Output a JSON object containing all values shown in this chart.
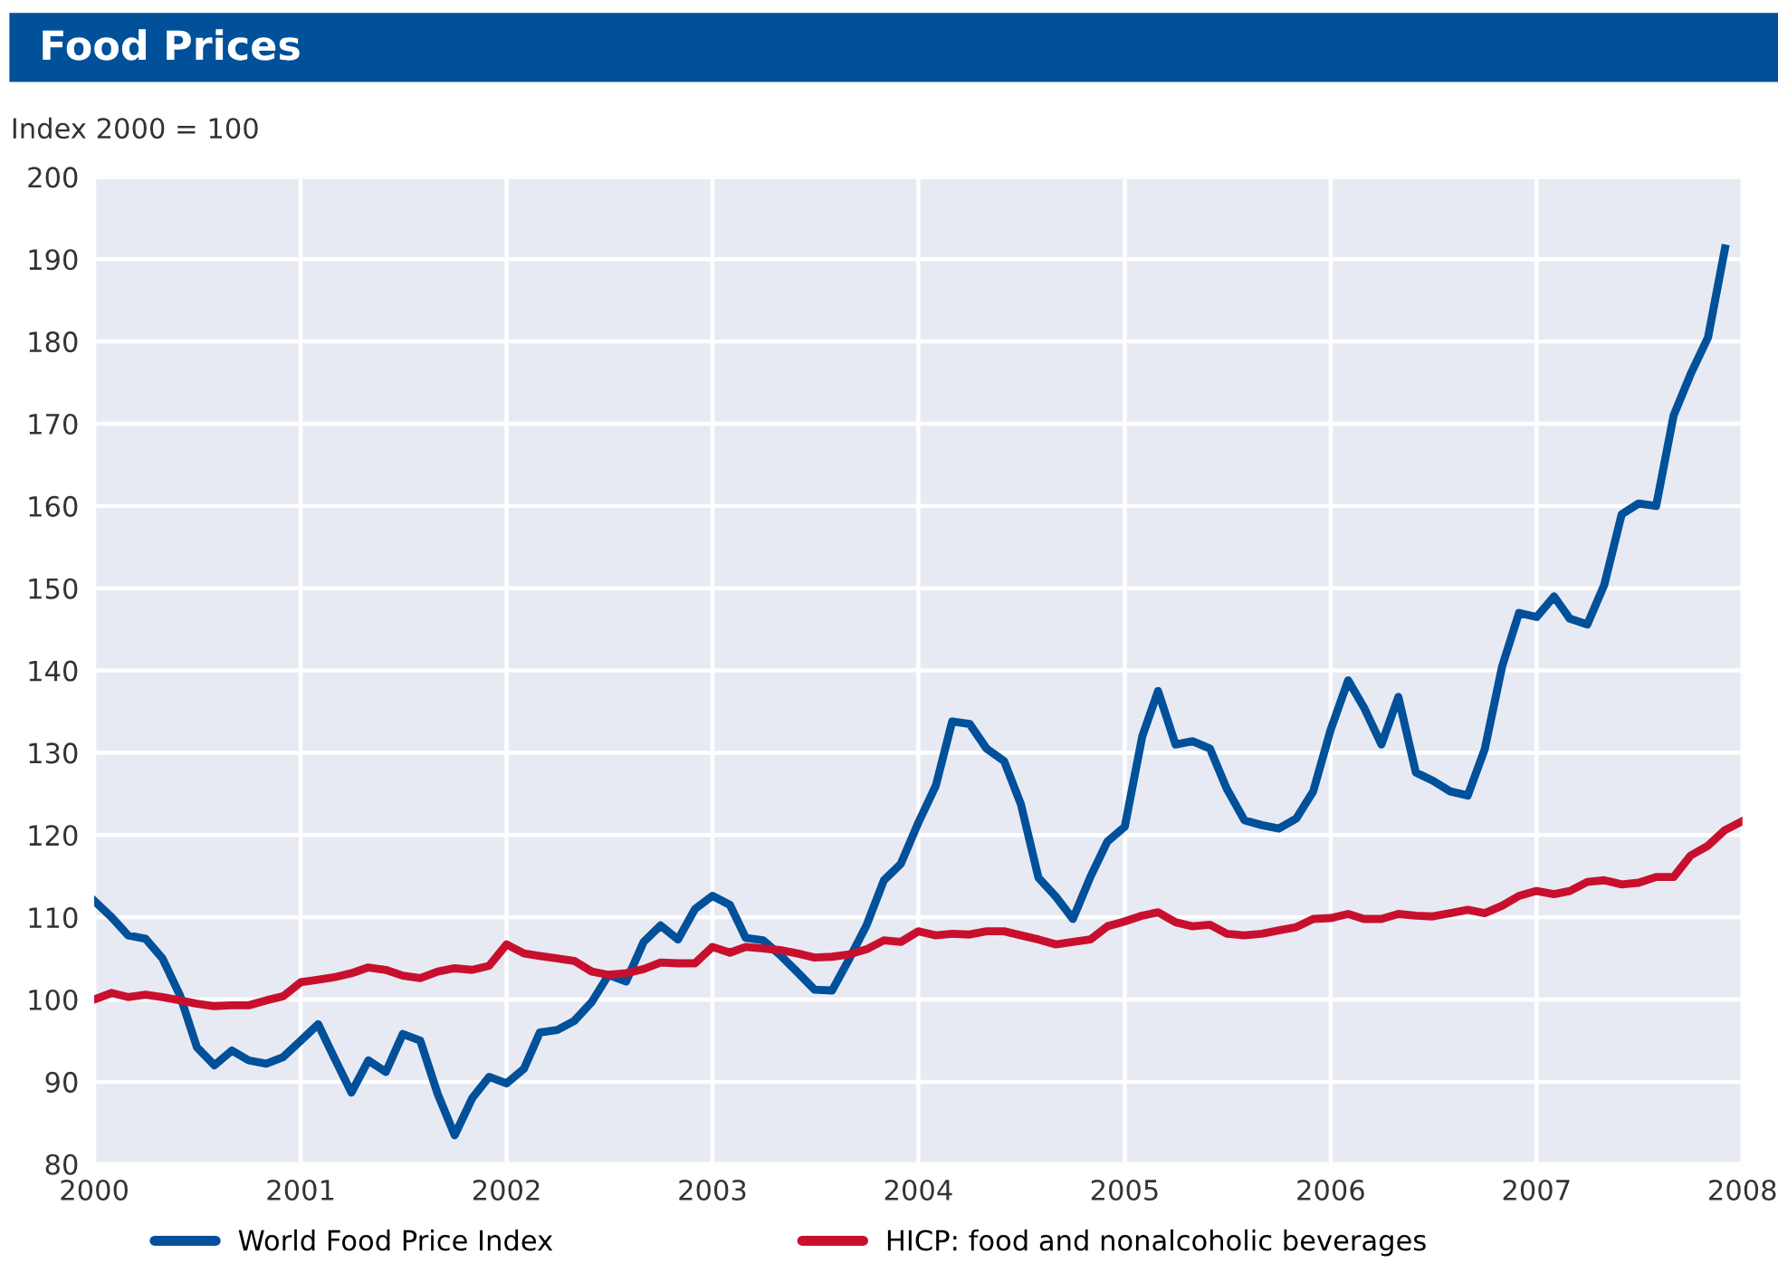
{
  "chart_data": {
    "type": "line",
    "title": "Food Prices",
    "ylabel": "Index 2000 = 100",
    "x": [
      "2000-01",
      "2000-02",
      "2000-03",
      "2000-04",
      "2000-05",
      "2000-06",
      "2000-07",
      "2000-08",
      "2000-09",
      "2000-10",
      "2000-11",
      "2000-12",
      "2001-01",
      "2001-02",
      "2001-03",
      "2001-04",
      "2001-05",
      "2001-06",
      "2001-07",
      "2001-08",
      "2001-09",
      "2001-10",
      "2001-11",
      "2001-12",
      "2002-01",
      "2002-02",
      "2002-03",
      "2002-04",
      "2002-05",
      "2002-06",
      "2002-07",
      "2002-08",
      "2002-09",
      "2002-10",
      "2002-11",
      "2002-12",
      "2003-01",
      "2003-02",
      "2003-03",
      "2003-04",
      "2003-05",
      "2003-06",
      "2003-07",
      "2003-08",
      "2003-09",
      "2003-10",
      "2003-11",
      "2003-12",
      "2004-01",
      "2004-02",
      "2004-03",
      "2004-04",
      "2004-05",
      "2004-06",
      "2004-07",
      "2004-08",
      "2004-09",
      "2004-10",
      "2004-11",
      "2004-12",
      "2005-01",
      "2005-02",
      "2005-03",
      "2005-04",
      "2005-05",
      "2005-06",
      "2005-07",
      "2005-08",
      "2005-09",
      "2005-10",
      "2005-11",
      "2005-12",
      "2006-01",
      "2006-02",
      "2006-03",
      "2006-04",
      "2006-05",
      "2006-06",
      "2006-07",
      "2006-08",
      "2006-09",
      "2006-10",
      "2006-11",
      "2006-12",
      "2007-01",
      "2007-02",
      "2007-03",
      "2007-04",
      "2007-05",
      "2007-06",
      "2007-07",
      "2007-08",
      "2007-09",
      "2007-10",
      "2007-11",
      "2007-12"
    ],
    "series": [
      {
        "name": "World Food Price Index",
        "color": "#00509a",
        "values": [
          112,
          110,
          107.8,
          107.4,
          105,
          100.5,
          94.2,
          92,
          93.8,
          92.6,
          92.2,
          93,
          95,
          97,
          93,
          88.7,
          92.6,
          91.2,
          95.8,
          95,
          88.5,
          83.5,
          88,
          90.6,
          89.8,
          91.6,
          96,
          96.3,
          97.4,
          99.7,
          103,
          102.2,
          107,
          109,
          107.3,
          111,
          112.6,
          111.5,
          107.5,
          107.2,
          105.4,
          103.3,
          101.2,
          101.1,
          105,
          109,
          114.5,
          116.5,
          121.5,
          126,
          133.8,
          133.5,
          130.5,
          129,
          123.7,
          114.8,
          112.5,
          109.8,
          114.9,
          119.2,
          121,
          132,
          137.5,
          131,
          131.4,
          130.5,
          125.6,
          121.8,
          121.2,
          120.8,
          122,
          125.3,
          132.8,
          138.8,
          135.5,
          131,
          136.8,
          127.6,
          126.6,
          125.3,
          124.8,
          130.4,
          140.5,
          147,
          146.5,
          149,
          146.3,
          145.6,
          150.4,
          159,
          160.3,
          160,
          171,
          176,
          180.5,
          191.3
        ]
      },
      {
        "name": "HICP: food and nonalcoholic beverages",
        "color": "#c8102e",
        "x": [
          "2000-01",
          "2000-02",
          "2000-03",
          "2000-04",
          "2000-05",
          "2000-06",
          "2000-07",
          "2000-08",
          "2000-09",
          "2000-10",
          "2000-11",
          "2000-12",
          "2001-01",
          "2001-02",
          "2001-03",
          "2001-04",
          "2001-05",
          "2001-06",
          "2001-07",
          "2001-08",
          "2001-09",
          "2001-10",
          "2001-11",
          "2001-12",
          "2002-01",
          "2002-02",
          "2002-03",
          "2002-04",
          "2002-05",
          "2002-06",
          "2002-07",
          "2002-08",
          "2002-09",
          "2002-10",
          "2002-11",
          "2002-12",
          "2003-01",
          "2003-02",
          "2003-03",
          "2003-04",
          "2003-05",
          "2003-06",
          "2003-07",
          "2003-08",
          "2003-09",
          "2003-10",
          "2003-11",
          "2003-12",
          "2004-01",
          "2004-02",
          "2004-03",
          "2004-04",
          "2004-05",
          "2004-06",
          "2004-07",
          "2004-08",
          "2004-09",
          "2004-10",
          "2004-11",
          "2004-12",
          "2005-01",
          "2005-02",
          "2005-03",
          "2005-04",
          "2005-05",
          "2005-06",
          "2005-07",
          "2005-08",
          "2005-09",
          "2005-10",
          "2005-11",
          "2005-12",
          "2006-01",
          "2006-02",
          "2006-03",
          "2006-04",
          "2006-05",
          "2006-06",
          "2006-07",
          "2006-08",
          "2006-09",
          "2006-10",
          "2006-11",
          "2006-12",
          "2007-01",
          "2007-02",
          "2007-03",
          "2007-04",
          "2007-05",
          "2007-06",
          "2007-07",
          "2007-08",
          "2007-09",
          "2007-10",
          "2007-11",
          "2007-12",
          "2008-01"
        ],
        "values": [
          100,
          100.8,
          100.3,
          100.6,
          100.3,
          99.9,
          99.5,
          99.2,
          99.3,
          99.3,
          99.9,
          100.4,
          102.1,
          102.4,
          102.7,
          103.2,
          103.9,
          103.6,
          102.9,
          102.6,
          103.4,
          103.8,
          103.6,
          104.1,
          106.7,
          105.6,
          105.3,
          105,
          104.7,
          103.4,
          103,
          103.2,
          103.7,
          104.5,
          104.4,
          104.4,
          106.4,
          105.7,
          106.4,
          106.2,
          106,
          105.6,
          105.1,
          105.2,
          105.5,
          106.1,
          107.2,
          107,
          108.3,
          107.8,
          108,
          107.9,
          108.3,
          108.3,
          107.8,
          107.3,
          106.7,
          107,
          107.3,
          108.9,
          109.5,
          110.2,
          110.6,
          109.4,
          108.9,
          109.1,
          108,
          107.8,
          108,
          108.4,
          108.8,
          109.8,
          109.9,
          110.4,
          109.8,
          109.8,
          110.4,
          110.2,
          110.1,
          110.5,
          110.9,
          110.5,
          111.4,
          112.6,
          113.2,
          112.8,
          113.2,
          114.3,
          114.5,
          114,
          114.2,
          114.9,
          114.9,
          117.5,
          118.7,
          120.6,
          121.7
        ]
      }
    ],
    "xlim": [
      "2000-01",
      "2008-01"
    ],
    "xticks": [
      "2000",
      "2001",
      "2002",
      "2003",
      "2004",
      "2005",
      "2006",
      "2007",
      "2008"
    ],
    "ylim": [
      80,
      200
    ],
    "yticks": [
      80,
      90,
      100,
      110,
      120,
      130,
      140,
      150,
      160,
      170,
      180,
      190,
      200
    ],
    "grid": true,
    "legend": "bottom",
    "line_style": "solid"
  }
}
